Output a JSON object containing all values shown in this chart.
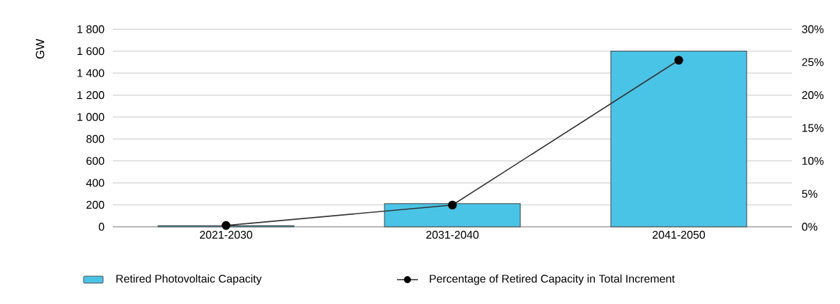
{
  "chart_data": {
    "type": "bar",
    "ylabel": "GW",
    "categories": [
      "2021-2030",
      "2031-2040",
      "2041-2050"
    ],
    "series": [
      {
        "name": "Retired Photovoltaic Capacity",
        "color": "#4ac4e6",
        "values": [
          10,
          210,
          1600
        ]
      },
      {
        "name": "Percentage of Retired Capacity in Total Increment",
        "type": "line",
        "axis": "y2",
        "color": "#333333",
        "marker": "circle",
        "line_style": "solid",
        "values": [
          0.2,
          3.3,
          25.3
        ]
      }
    ],
    "ylim": [
      0,
      1800
    ],
    "yticks": [
      0,
      200,
      400,
      600,
      800,
      {
        "value": 1000,
        "label": "1 000"
      },
      {
        "value": 1200,
        "label": "1 200"
      },
      {
        "value": 1400,
        "label": "1 400"
      },
      {
        "value": 1600,
        "label": "1 600"
      },
      {
        "value": 1800,
        "label": "1 800"
      }
    ],
    "y2lim": [
      0,
      30
    ],
    "y2ticks": [
      {
        "value": 0,
        "label": "0%"
      },
      {
        "value": 5,
        "label": "5%"
      },
      {
        "value": 10,
        "label": "10%"
      },
      {
        "value": 15,
        "label": "15%"
      },
      {
        "value": 20,
        "label": "20%"
      },
      {
        "value": 25,
        "label": "25%"
      },
      {
        "value": 30,
        "label": "30%"
      }
    ],
    "grid": "y",
    "legend": "bottom"
  }
}
